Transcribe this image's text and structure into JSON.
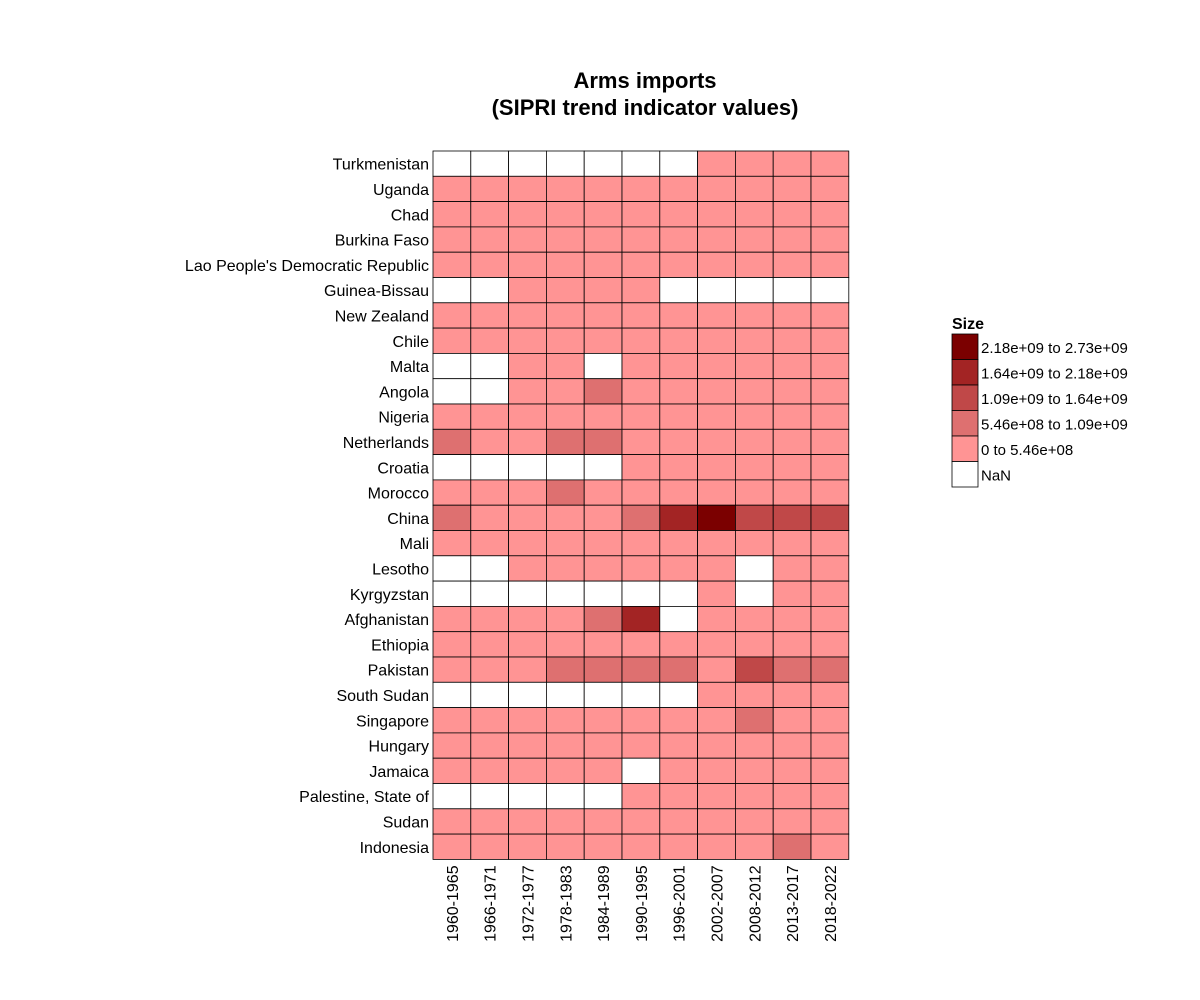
{
  "chart_data": {
    "type": "heatmap",
    "title_lines": [
      "Arms imports",
      "(SIPRI trend indicator values)"
    ],
    "x_categories": [
      "1960-1965",
      "1966-1971",
      "1972-1977",
      "1978-1983",
      "1984-1989",
      "1990-1995",
      "1996-2001",
      "2002-2007",
      "2008-2012",
      "2013-2017",
      "2018-2022"
    ],
    "y_categories": [
      "Turkmenistan",
      "Uganda",
      "Chad",
      "Burkina Faso",
      "Lao People's Democratic Republic",
      "Guinea-Bissau",
      "New Zealand",
      "Chile",
      "Malta",
      "Angola",
      "Nigeria",
      "Netherlands",
      "Croatia",
      "Morocco",
      "China",
      "Mali",
      "Lesotho",
      "Kyrgyzstan",
      "Afghanistan",
      "Ethiopia",
      "Pakistan",
      "South Sudan",
      "Singapore",
      "Hungary",
      "Jamaica",
      "Palestine, State of",
      "Sudan",
      "Indonesia"
    ],
    "bin_index_matrix": [
      [
        null,
        null,
        null,
        null,
        null,
        null,
        null,
        0,
        0,
        0,
        0
      ],
      [
        0,
        0,
        0,
        0,
        0,
        0,
        0,
        0,
        0,
        0,
        0
      ],
      [
        0,
        0,
        0,
        0,
        0,
        0,
        0,
        0,
        0,
        0,
        0
      ],
      [
        0,
        0,
        0,
        0,
        0,
        0,
        0,
        0,
        0,
        0,
        0
      ],
      [
        0,
        0,
        0,
        0,
        0,
        0,
        0,
        0,
        0,
        0,
        0
      ],
      [
        null,
        null,
        0,
        0,
        0,
        0,
        null,
        null,
        null,
        null,
        null
      ],
      [
        0,
        0,
        0,
        0,
        0,
        0,
        0,
        0,
        0,
        0,
        0
      ],
      [
        0,
        0,
        0,
        0,
        0,
        0,
        0,
        0,
        0,
        0,
        0
      ],
      [
        null,
        null,
        0,
        0,
        null,
        0,
        0,
        0,
        0,
        0,
        0
      ],
      [
        null,
        null,
        0,
        0,
        1,
        0,
        0,
        0,
        0,
        0,
        0
      ],
      [
        0,
        0,
        0,
        0,
        0,
        0,
        0,
        0,
        0,
        0,
        0
      ],
      [
        1,
        0,
        0,
        1,
        1,
        0,
        0,
        0,
        0,
        0,
        0
      ],
      [
        null,
        null,
        null,
        null,
        null,
        0,
        0,
        0,
        0,
        0,
        0
      ],
      [
        0,
        0,
        0,
        1,
        0,
        0,
        0,
        0,
        0,
        0,
        0
      ],
      [
        1,
        0,
        0,
        0,
        0,
        1,
        3,
        4,
        2,
        2,
        2
      ],
      [
        0,
        0,
        0,
        0,
        0,
        0,
        0,
        0,
        0,
        0,
        0
      ],
      [
        null,
        null,
        0,
        0,
        0,
        0,
        0,
        0,
        null,
        0,
        0
      ],
      [
        null,
        null,
        null,
        null,
        null,
        null,
        null,
        0,
        null,
        0,
        0
      ],
      [
        0,
        0,
        0,
        0,
        1,
        3,
        null,
        0,
        0,
        0,
        0
      ],
      [
        0,
        0,
        0,
        0,
        0,
        0,
        0,
        0,
        0,
        0,
        0
      ],
      [
        0,
        0,
        0,
        1,
        1,
        1,
        1,
        0,
        2,
        1,
        1
      ],
      [
        null,
        null,
        null,
        null,
        null,
        null,
        null,
        0,
        0,
        0,
        0
      ],
      [
        0,
        0,
        0,
        0,
        0,
        0,
        0,
        0,
        1,
        0,
        0
      ],
      [
        0,
        0,
        0,
        0,
        0,
        0,
        0,
        0,
        0,
        0,
        0
      ],
      [
        0,
        0,
        0,
        0,
        0,
        null,
        0,
        0,
        0,
        0,
        0
      ],
      [
        null,
        null,
        null,
        null,
        null,
        0,
        0,
        0,
        0,
        0,
        0
      ],
      [
        0,
        0,
        0,
        0,
        0,
        0,
        0,
        0,
        0,
        0,
        0
      ],
      [
        0,
        0,
        0,
        0,
        0,
        0,
        0,
        0,
        0,
        1,
        0
      ]
    ],
    "legend": {
      "title": "Size",
      "bins": [
        {
          "label": "2.18e+09 to 2.73e+09",
          "color": "#7b0000"
        },
        {
          "label": "1.64e+09 to 2.18e+09",
          "color": "#a32424"
        },
        {
          "label": "1.09e+09 to 1.64e+09",
          "color": "#c04848"
        },
        {
          "label": "5.46e+08 to 1.09e+09",
          "color": "#de7070"
        },
        {
          "label": "0 to 5.46e+08",
          "color": "#ff9494"
        },
        {
          "label": "NaN",
          "color": "#ffffff"
        }
      ]
    },
    "bin_colors": [
      "#ff9494",
      "#de7070",
      "#c04848",
      "#a32424",
      "#7b0000"
    ],
    "nan_color": "#ffffff",
    "grid": true,
    "legend_position": "right"
  }
}
